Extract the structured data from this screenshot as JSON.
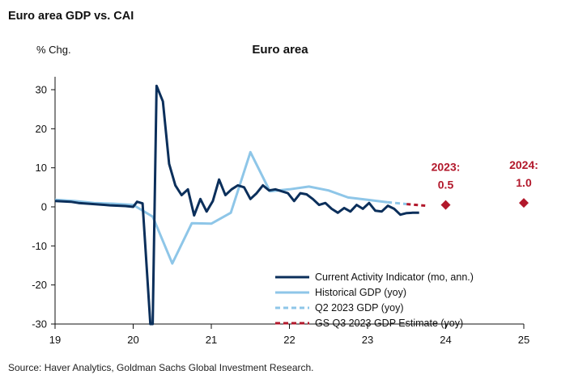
{
  "page": {
    "title": "Euro area GDP vs. CAI",
    "source": "Source: Haver Analytics, Goldman Sachs Global Investment Research."
  },
  "colors": {
    "cai": "#0b2f5b",
    "gdp": "#8ec6e8",
    "estimate": "#b2182b"
  },
  "chart_data": {
    "type": "line",
    "title": "Euro area",
    "ylabel": "% Chg.",
    "xlabel": "",
    "xlim": [
      2019,
      2025
    ],
    "ylim": [
      -30,
      35
    ],
    "x_ticks": [
      2019,
      2020,
      2021,
      2022,
      2023,
      2024,
      2025
    ],
    "x_tick_labels": [
      "19",
      "20",
      "21",
      "22",
      "23",
      "24",
      "25"
    ],
    "y_ticks": [
      30,
      20,
      10,
      0,
      -10,
      -20,
      -30
    ],
    "y_tick_labels": [
      "30",
      "20",
      "10",
      "0",
      "-10",
      "-20",
      "-30"
    ],
    "grid": false,
    "legend_position": "bottom-right",
    "series": [
      {
        "name": "Current Activity Indicator (mo, ann.)",
        "style": "solid-dark",
        "x": [
          2019.0,
          2019.2,
          2019.3,
          2019.5,
          2019.7,
          2019.9,
          2020.0,
          2020.05,
          2020.12,
          2020.22,
          2020.25,
          2020.3,
          2020.38,
          2020.46,
          2020.54,
          2020.62,
          2020.7,
          2020.78,
          2020.86,
          2020.94,
          2021.02,
          2021.1,
          2021.18,
          2021.26,
          2021.34,
          2021.42,
          2021.5,
          2021.58,
          2021.66,
          2021.74,
          2021.82,
          2021.9,
          2021.98,
          2022.06,
          2022.14,
          2022.22,
          2022.3,
          2022.38,
          2022.46,
          2022.54,
          2022.62,
          2022.7,
          2022.78,
          2022.86,
          2022.94,
          2023.02,
          2023.1,
          2023.18,
          2023.26,
          2023.34,
          2023.42,
          2023.5,
          2023.58,
          2023.66
        ],
        "y": [
          1.5,
          1.3,
          1.0,
          0.7,
          0.4,
          0.2,
          0.0,
          1.3,
          0.9,
          -30,
          -30,
          31.0,
          27.0,
          11.0,
          5.5,
          3.0,
          4.5,
          -2.2,
          2.0,
          -1.2,
          1.5,
          7.0,
          3.0,
          4.5,
          5.5,
          5.0,
          2.0,
          3.5,
          5.5,
          4.2,
          4.5,
          4.0,
          3.5,
          1.5,
          3.5,
          3.2,
          2.0,
          0.5,
          1.0,
          -0.5,
          -1.5,
          -0.3,
          -1.2,
          0.5,
          -0.5,
          1.0,
          -1.0,
          -1.2,
          0.3,
          -0.5,
          -2.0,
          -1.6,
          -1.5,
          -1.5
        ]
      },
      {
        "name": "Historical GDP (yoy)",
        "style": "solid-light",
        "x": [
          2019.0,
          2019.25,
          2019.5,
          2019.75,
          2020.0,
          2020.25,
          2020.5,
          2020.75,
          2021.0,
          2021.25,
          2021.5,
          2021.75,
          2022.0,
          2022.25,
          2022.5,
          2022.75,
          2023.0,
          2023.25
        ],
        "y": [
          1.8,
          1.5,
          1.0,
          0.8,
          0.5,
          -2.5,
          -14.5,
          -4.2,
          -4.3,
          -1.5,
          14.0,
          4.0,
          4.5,
          5.2,
          4.2,
          2.4,
          1.8,
          1.2
        ]
      },
      {
        "name": "Q2 2023 GDP (yoy)",
        "style": "dashed-light",
        "x": [
          2023.25,
          2023.5
        ],
        "y": [
          1.2,
          0.7
        ]
      },
      {
        "name": "GS Q3 2023 GDP Estimate (yoy)",
        "style": "dashed-red",
        "x": [
          2023.5,
          2023.75
        ],
        "y": [
          0.7,
          0.3
        ]
      }
    ],
    "annotations": [
      {
        "text_top": "2023:",
        "text_bottom": "0.5",
        "x": 2024.0,
        "y": 0.5
      },
      {
        "text_top": "2024:",
        "text_bottom": "1.0",
        "x": 2025.0,
        "y": 1.0
      }
    ]
  }
}
